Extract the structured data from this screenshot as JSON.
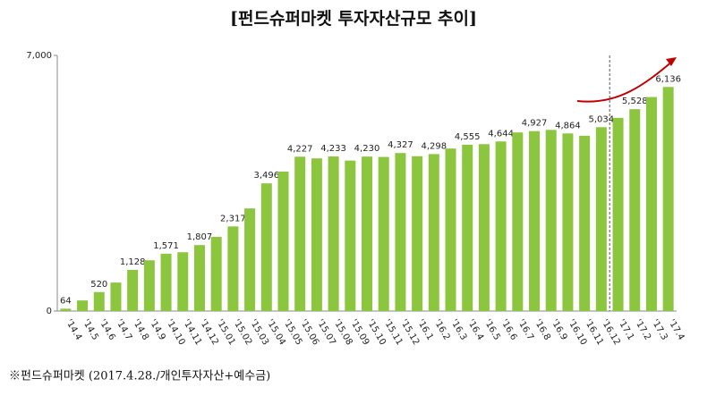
{
  "chart_data": {
    "type": "bar",
    "title": "[펀드슈퍼마켓 투자자산규모 추이]",
    "note": "※펀드슈퍼마켓 (2017.4.28./개인투자자산+예수금)",
    "categories": [
      "'14.4",
      "'14.5",
      "'14.6",
      "'14.7",
      "'14.8",
      "'14.9",
      "'14.10",
      "'14.11",
      "'14.12",
      "'15.01",
      "'15.02",
      "'15.03",
      "'15.04",
      "'15.05",
      "'15.06",
      "'15.07",
      "'15.08",
      "'15.09",
      "'15.10",
      "'15.11",
      "'15.12",
      "'16.1",
      "'16.2",
      "'16.3",
      "'16.4",
      "'16.5",
      "'16.6",
      "'16.7",
      "'16.8",
      "'16.9",
      "'16.10",
      "'16.11",
      "'16.12",
      "'17.1",
      "'17.2",
      "'17.3",
      "'17.4"
    ],
    "values": [
      64,
      290,
      520,
      780,
      1128,
      1390,
      1571,
      1610,
      1807,
      2030,
      2317,
      2810,
      3496,
      3820,
      4227,
      4180,
      4233,
      4120,
      4230,
      4220,
      4327,
      4240,
      4298,
      4450,
      4555,
      4570,
      4644,
      4890,
      4927,
      4960,
      4864,
      4800,
      5034,
      5290,
      5528,
      5860,
      6136
    ],
    "value_labels": [
      "64",
      null,
      "520",
      null,
      "1,128",
      null,
      "1,571",
      null,
      "1,807",
      null,
      "2,317",
      null,
      "3,496",
      null,
      "4,227",
      null,
      "4,233",
      null,
      "4,230",
      null,
      "4,327",
      null,
      "4,298",
      null,
      "4,555",
      null,
      "4,644",
      null,
      "4,927",
      null,
      "4,864",
      null,
      "5,034",
      null,
      "5,528",
      null,
      "6,136"
    ],
    "color": "#8cc63f",
    "ylim": [
      0,
      7000
    ],
    "yticks": [
      0,
      {
        "value": 7000,
        "label": "7,000"
      }
    ]
  }
}
